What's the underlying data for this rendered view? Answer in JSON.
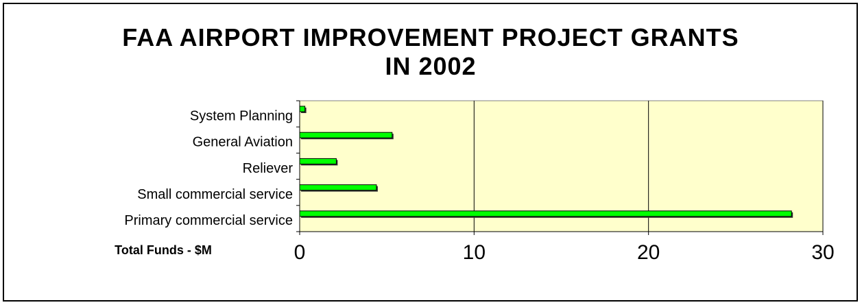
{
  "chart_data": {
    "type": "barh",
    "title": "FAA AIRPORT IMPROVEMENT PROJECT GRANTS IN 2002",
    "xlabel": "Total Funds - $M",
    "categories": [
      "System Planning",
      "General Aviation",
      "Reliever",
      "Small commercial service",
      "Primary commercial service"
    ],
    "values": [
      0.3,
      5.3,
      2.1,
      4.4,
      28.2
    ],
    "color": "#00ff00",
    "xlim": [
      0,
      30
    ],
    "xticks": [
      0,
      10,
      20,
      30
    ],
    "grid": true
  }
}
